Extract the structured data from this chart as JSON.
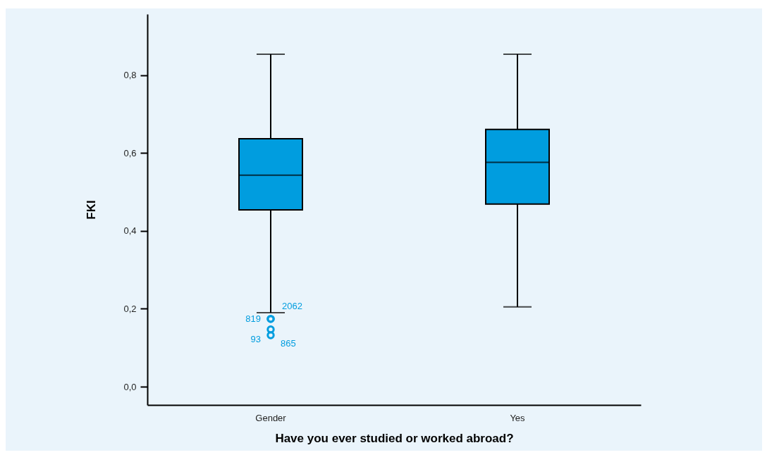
{
  "chart_data": {
    "type": "box",
    "xlabel": "Have you ever studied or worked abroad?",
    "ylabel": "FKI",
    "categories": [
      "Gender",
      "Yes"
    ],
    "series": [
      {
        "color": "#009ddf",
        "boxes": [
          {
            "low": 0.19,
            "q1": 0.454,
            "median": 0.543,
            "q3": 0.637,
            "high": 0.854,
            "outliers": [
              0.174,
              0.174,
              0.147,
              0.132
            ]
          },
          {
            "low": 0.205,
            "q1": 0.469,
            "median": 0.576,
            "q3": 0.661,
            "high": 0.854
          }
        ]
      }
    ],
    "ylim": [
      -0.047,
      0.957
    ],
    "yticks": [
      {
        "value": 0,
        "label": "0,0"
      },
      {
        "value": 0.2,
        "label": "0,2"
      },
      {
        "value": 0.4,
        "label": "0,4"
      },
      {
        "value": 0.6,
        "label": "0,6"
      },
      {
        "value": 0.8,
        "label": "0,8"
      }
    ],
    "grid": false,
    "annotations": [
      "819",
      "2062",
      "93",
      "865"
    ]
  }
}
